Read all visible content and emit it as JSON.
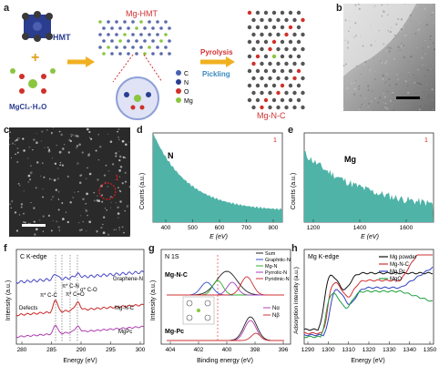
{
  "panels": {
    "a": {
      "letter": "a",
      "hmt_label": "HMT",
      "mg_hmt_label": "Mg-HMT",
      "mgcl_label": "MgCl₂·H₂O",
      "pyrolysis": "Pyrolysis",
      "pickling": "Pickling",
      "mg_n_c_label": "Mg-N-C",
      "legend": [
        {
          "label": "C",
          "color": "#4a5fb0"
        },
        {
          "label": "N",
          "color": "#2a3d8f"
        },
        {
          "label": "O",
          "color": "#d0302a"
        },
        {
          "label": "Mg",
          "color": "#8ac640"
        }
      ]
    },
    "b": {
      "letter": "b"
    },
    "c": {
      "letter": "c",
      "marker": "1"
    },
    "d": {
      "letter": "d",
      "element": "N",
      "marker": "1",
      "xlabel": "E (eV)",
      "ylabel": "Counts (a.u.)",
      "xticks": [
        "400",
        "500",
        "600",
        "700",
        "800"
      ]
    },
    "e": {
      "letter": "e",
      "element": "Mg",
      "marker": "1",
      "xlabel": "E (eV)",
      "ylabel": "Counts (a.u.)",
      "xticks": [
        "1200",
        "1400",
        "1600"
      ]
    },
    "f": {
      "letter": "f",
      "title": "C K-edge",
      "xlabel": "Energy (eV)",
      "ylabel": "Intensity (a.u.)",
      "xticks": [
        "280",
        "285",
        "290",
        "295",
        "300"
      ],
      "annotations": [
        "π* C-N",
        "π* C-C",
        "π* C=O",
        "σ* C-O",
        "Defects"
      ],
      "series": [
        "Graphene-N",
        "Mg-N-C",
        "MgPc"
      ]
    },
    "g": {
      "letter": "g",
      "title": "N 1S",
      "xlabel": "Binding energy (eV)",
      "ylabel": "Intensity (a.u.)",
      "xticks": [
        "404",
        "402",
        "400",
        "398",
        "396"
      ],
      "sample1": "Mg-N-C",
      "sample2": "Mg-Pc",
      "legend1": [
        "Sum",
        "Graphitic-N",
        "Mg-N",
        "Pyrrolic-N",
        "Pyridinic-N"
      ],
      "legend2": [
        "Nα",
        "Nβ"
      ]
    },
    "h": {
      "letter": "h",
      "title": "Mg K-edge",
      "xlabel": "Energy (eV)",
      "ylabel": "Adsorption intensity (a.u.)",
      "xticks": [
        "1290",
        "1300",
        "1310",
        "1320",
        "1330",
        "1340",
        "1350"
      ],
      "legend": [
        "Mg powder",
        "Mg-N-C",
        "Mg Pc",
        "MgO"
      ]
    }
  },
  "chart_data": [
    {
      "type": "area",
      "title": "",
      "xlabel": "E (eV)",
      "ylabel": "Counts (a.u.)",
      "xlim": [
        350,
        860
      ],
      "annotations": [
        "N",
        "1"
      ]
    },
    {
      "type": "area",
      "title": "",
      "xlabel": "E (eV)",
      "ylabel": "Counts (a.u.)",
      "xlim": [
        1180,
        1700
      ],
      "annotations": [
        "Mg",
        "1"
      ]
    },
    {
      "type": "line",
      "title": "C K-edge",
      "xlabel": "Energy (eV)",
      "ylabel": "Intensity (a.u.)",
      "xlim": [
        280,
        300
      ],
      "series": [
        {
          "name": "Graphene-N"
        },
        {
          "name": "Mg-N-C"
        },
        {
          "name": "MgPc"
        }
      ]
    },
    {
      "type": "line",
      "title": "N 1S",
      "xlabel": "Binding energy (eV)",
      "ylabel": "Intensity (a.u.)",
      "xlim": [
        405,
        395
      ],
      "series": [
        {
          "name": "Sum"
        },
        {
          "name": "Graphitic-N"
        },
        {
          "name": "Mg-N"
        },
        {
          "name": "Pyrrolic-N"
        },
        {
          "name": "Pyridinic-N"
        },
        {
          "name": "Nα"
        },
        {
          "name": "Nβ"
        }
      ]
    },
    {
      "type": "line",
      "title": "Mg K-edge",
      "xlabel": "Energy (eV)",
      "ylabel": "Adsorption intensity (a.u.)",
      "xlim": [
        1290,
        1350
      ],
      "series": [
        {
          "name": "Mg powder",
          "color": "#111111"
        },
        {
          "name": "Mg-N-C",
          "color": "#d03030"
        },
        {
          "name": "Mg Pc",
          "color": "#3040c0"
        },
        {
          "name": "MgO",
          "color": "#20a040"
        }
      ]
    }
  ]
}
